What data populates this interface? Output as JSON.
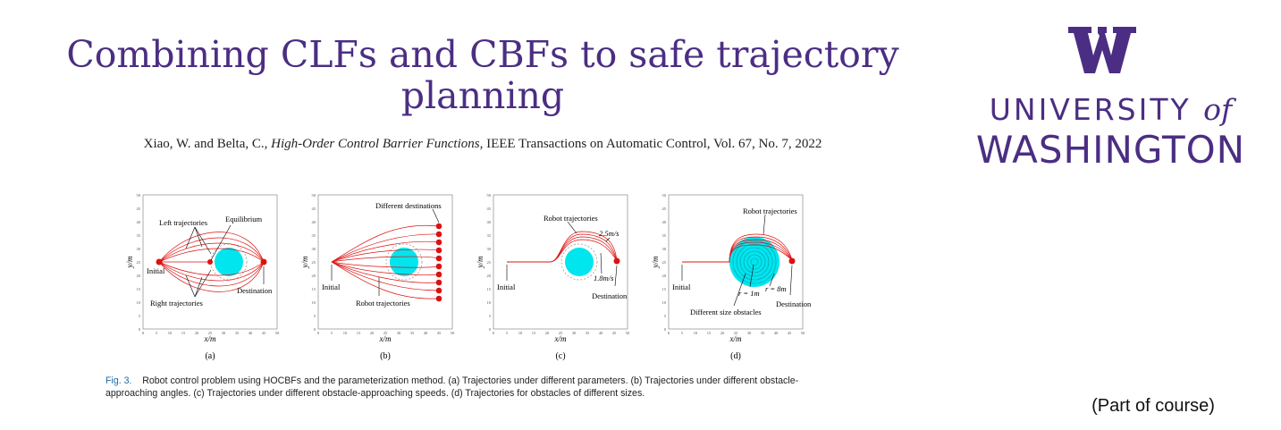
{
  "title": "Combining CLFs and CBFs to safe trajectory planning",
  "citation": {
    "authors": "Xiao, W. and Belta, C., ",
    "paper_title": "High-Order Control Barrier Functions,",
    "venue": " IEEE Transactions on Automatic Control, Vol. 67, No. 7, 2022"
  },
  "logo": {
    "line1_a": "UNIVERSITY",
    "line1_b": "of",
    "line2": "WASHINGTON",
    "brand_color": "#4b2e83"
  },
  "figure": {
    "x_axis_label": "x/m",
    "y_axis_label": "y/m",
    "x_ticks": [
      "0",
      "5",
      "10",
      "15",
      "20",
      "25",
      "30",
      "35",
      "40",
      "45",
      "50"
    ],
    "y_ticks": [
      "50",
      "45",
      "40",
      "35",
      "30",
      "25",
      "20",
      "15",
      "10",
      "5",
      "0"
    ],
    "panels": [
      {
        "label": "(a)",
        "annotations": [
          "Left trajectories",
          "Equilibrium",
          "Initial",
          "Destination",
          "Right trajectories"
        ]
      },
      {
        "label": "(b)",
        "annotations": [
          "Different destinations",
          "Initial",
          "Robot trajectories"
        ]
      },
      {
        "label": "(c)",
        "annotations": [
          "Robot trajectories",
          "2.5m/s",
          "Initial",
          "1.8m/s",
          "Destination"
        ]
      },
      {
        "label": "(d)",
        "annotations": [
          "Robot trajectories",
          "Initial",
          "r = 1m",
          "r = 8m",
          "Different size obstacles",
          "Destination"
        ]
      }
    ],
    "caption_label": "Fig. 3.",
    "caption_text": "Robot control problem using HOCBFs and the parameterization method. (a) Trajectories under different parameters. (b) Trajectories under different obstacle-approaching angles. (c) Trajectories under different obstacle-approaching speeds. (d) Trajectories for obstacles of different sizes."
  },
  "footer_note": "(Part of course)"
}
